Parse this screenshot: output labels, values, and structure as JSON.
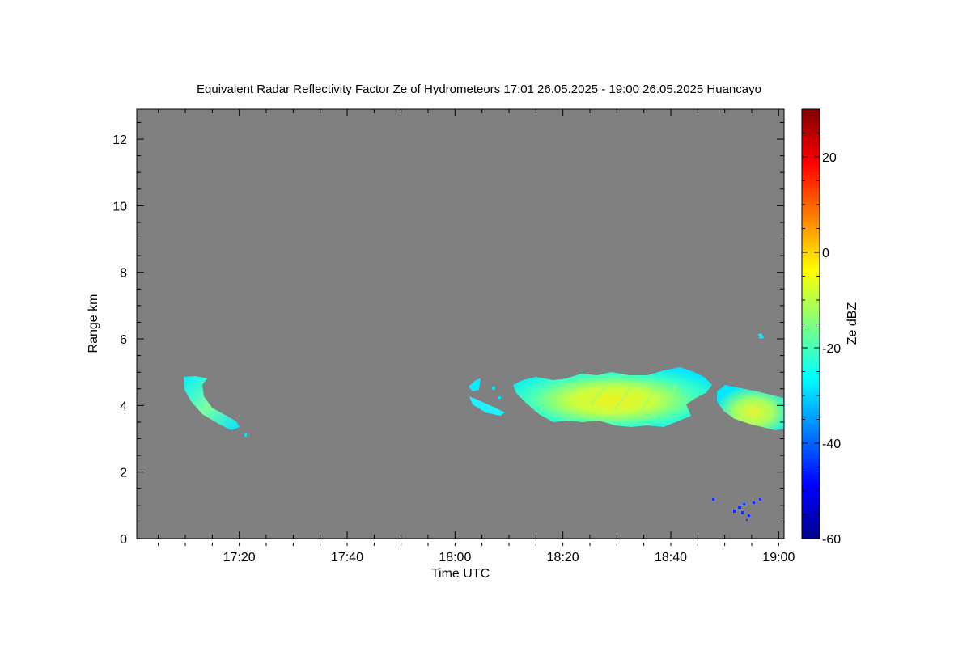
{
  "chart_data": {
    "type": "heatmap",
    "title": "Equivalent Radar Reflectivity Factor Ze of Hydrometeors   17:01 26.05.2025 - 19:00 26.05.2025 Huancayo",
    "xlabel": "Time UTC",
    "ylabel": "Range km",
    "xlim": [
      "17:01",
      "19:01"
    ],
    "ylim": [
      0,
      12.9
    ],
    "x_ticks": [
      "17:20",
      "17:40",
      "18:00",
      "18:20",
      "18:40",
      "19:00"
    ],
    "y_ticks": [
      "0",
      "2",
      "4",
      "6",
      "8",
      "10",
      "12"
    ],
    "colorbar": {
      "label": "Ze dBZ",
      "range": [
        -60,
        30
      ],
      "ticks": [
        "-60",
        "-40",
        "-20",
        "0",
        "20"
      ],
      "colormap": "jet"
    },
    "background_color": "#808080",
    "echoes": [
      {
        "time": "17:10-17:21",
        "range_km": [
          3.1,
          4.9
        ],
        "ze_dbz": [
          -28,
          -22
        ],
        "description": "descending echo streak"
      },
      {
        "time": "18:02-18:09",
        "range_km": [
          3.7,
          4.8
        ],
        "ze_dbz": [
          -30,
          -22
        ],
        "description": "small echo patches"
      },
      {
        "time": "18:11-18:47",
        "range_km": [
          3.3,
          5.2
        ],
        "ze_dbz": [
          -30,
          -3
        ],
        "description": "main echo layer"
      },
      {
        "time": "18:48-19:01",
        "range_km": [
          3.3,
          4.5
        ],
        "ze_dbz": [
          -30,
          -8
        ],
        "description": "echo layer"
      },
      {
        "time": "18:56",
        "range_km": [
          6.0,
          6.2
        ],
        "ze_dbz": [
          -28,
          -25
        ],
        "description": "isolated echo"
      },
      {
        "time": "18:47-18:57",
        "range_km": [
          0.5,
          1.2
        ],
        "ze_dbz": [
          -50,
          -42
        ],
        "description": "weak clutter points"
      }
    ]
  }
}
